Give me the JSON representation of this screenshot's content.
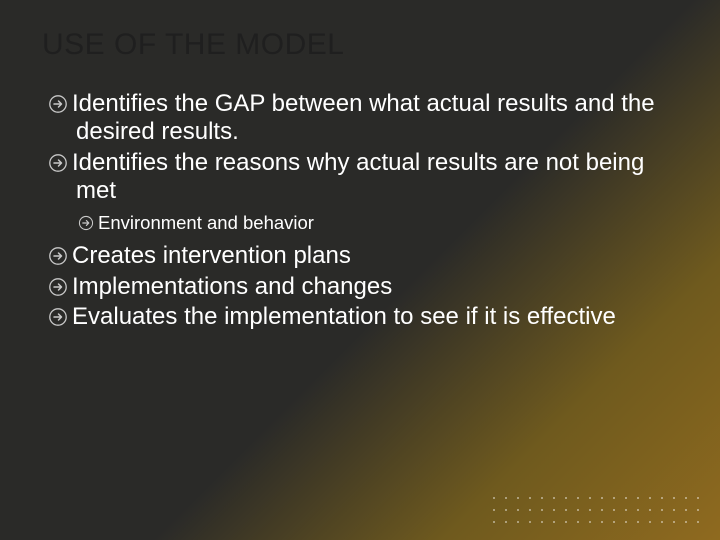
{
  "slide": {
    "title": "USE OF THE MODEL",
    "title_color": "#1f1f1f",
    "title_fontsize": 30,
    "body_color": "#ffffff",
    "lvl1_fontsize": 24,
    "lvl2_fontsize": 18.5,
    "background_gradient": {
      "stops": [
        "#2a2a28",
        "#2a2a28",
        "#6f5a1e",
        "#8f6a1f"
      ],
      "angle_deg": 135
    },
    "bullet_icon": {
      "type": "circled-right-arrow",
      "stroke": "#c9c9c9",
      "fill": "none"
    },
    "bullets": [
      {
        "level": 1,
        "text": "Identifies the GAP between what actual results and the desired results."
      },
      {
        "level": 1,
        "text": "Identifies the reasons why actual results are not being met"
      },
      {
        "level": 2,
        "text": "Environment and behavior"
      },
      {
        "level": 1,
        "text": "Creates intervention plans"
      },
      {
        "level": 1,
        "text": "Implementations and changes"
      },
      {
        "level": 1,
        "text": "Evaluates the implementation to see if it is effective"
      }
    ],
    "decorative_dots": {
      "rows": 3,
      "cols": 18,
      "color": "rgba(255,255,255,0.55)"
    }
  }
}
